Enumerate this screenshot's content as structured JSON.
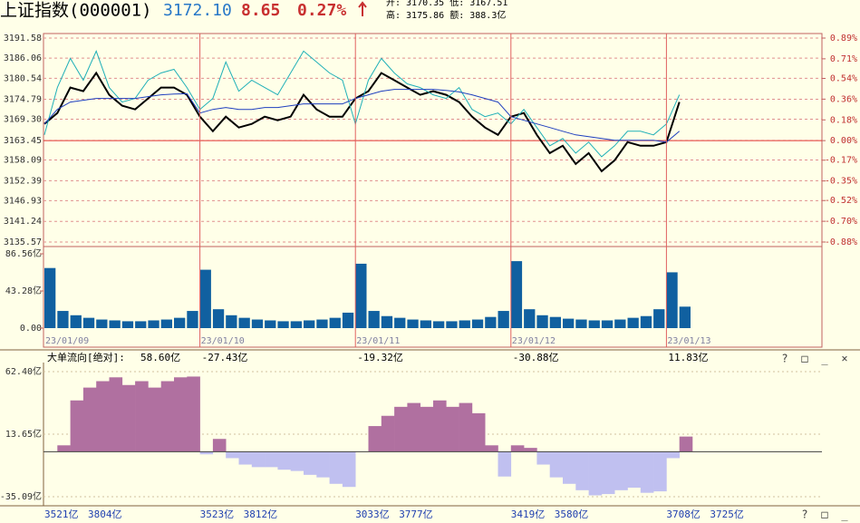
{
  "header": {
    "name": "上证指数(000001)",
    "price": "3172.10",
    "change": "8.65",
    "pct": "0.27%",
    "open_low": "开: 3170.35  低: 3167.51",
    "high_amount": "高: 3175.86  额: 388.3亿"
  },
  "chart_data": [
    {
      "type": "line",
      "series": [
        {
          "color": "#000000",
          "values": [
            3168,
            3171,
            3178,
            3177,
            3182,
            3176,
            3173,
            3172,
            3175,
            3178,
            3178,
            3176,
            3170,
            3166,
            3170,
            3167,
            3168,
            3170,
            3169,
            3170,
            3176,
            3172,
            3170,
            3170,
            3175,
            3177,
            3182,
            3180,
            3178,
            3176,
            3177,
            3176,
            3174,
            3170,
            3167,
            3165,
            3170,
            3171,
            3165,
            3160,
            3162,
            3157,
            3160,
            3155,
            3158,
            3163,
            3162,
            3162,
            3163,
            3174
          ]
        },
        {
          "color": "#20b0b8",
          "values": [
            3165,
            3178,
            3186,
            3180,
            3188,
            3178,
            3174,
            3175,
            3180,
            3182,
            3183,
            3178,
            3172,
            3175,
            3185,
            3177,
            3180,
            3178,
            3176,
            3182,
            3188,
            3185,
            3182,
            3180,
            3168,
            3180,
            3186,
            3182,
            3179,
            3178,
            3176,
            3175,
            3178,
            3172,
            3170,
            3171,
            3168,
            3172,
            3167,
            3162,
            3164,
            3160,
            3163,
            3159,
            3162,
            3166,
            3166,
            3165,
            3168,
            3176
          ]
        },
        {
          "color": "#1f3fbf",
          "values": [
            3168,
            3172,
            3174,
            3174.5,
            3175,
            3175,
            3175,
            3175,
            3175.5,
            3176,
            3176.2,
            3176.3,
            3171,
            3172,
            3172.5,
            3172,
            3172,
            3172.5,
            3172.5,
            3173,
            3173.5,
            3173.5,
            3173.5,
            3173.5,
            3175,
            3176,
            3177,
            3177.5,
            3177.5,
            3177.5,
            3177.5,
            3177.2,
            3176.8,
            3176,
            3175,
            3174,
            3170,
            3169,
            3168,
            3167,
            3166,
            3165,
            3164.5,
            3164,
            3163.5,
            3163.5,
            3163.5,
            3163.5,
            3163,
            3166
          ]
        }
      ],
      "ylim": [
        3135.57,
        3191.58
      ],
      "yticks": [
        3191.58,
        3186.06,
        3180.54,
        3174.79,
        {
          "value": 3169.3,
          "label": "3169.30"
        },
        3163.45,
        3158.09,
        3152.39,
        3146.93,
        3141.24,
        3135.57
      ],
      "y2lim": [
        -0.88,
        0.89
      ],
      "y2ticks": [
        {
          "value": 0.89,
          "label": "0.89%"
        },
        {
          "value": 0.71,
          "label": "0.71%"
        },
        {
          "value": 0.54,
          "label": "0.54%"
        },
        {
          "value": 0.36,
          "label": "0.36%"
        },
        {
          "value": 0.18,
          "label": "0.18%"
        },
        {
          "value": 0,
          "label": "0.00%"
        },
        {
          "value": -0.17,
          "label": "-0.17%"
        },
        {
          "value": -0.35,
          "label": "-0.35%"
        },
        {
          "value": -0.52,
          "label": "-0.52%"
        },
        {
          "value": -0.7,
          "label": "-0.70%"
        },
        {
          "value": -0.88,
          "label": "-0.88%"
        }
      ],
      "grid": true
    },
    {
      "type": "bar",
      "color": "#1060a0",
      "categories": [
        "23/01/09",
        null,
        null,
        null,
        null,
        null,
        null,
        null,
        null,
        null,
        null,
        null,
        "23/01/10",
        null,
        null,
        null,
        null,
        null,
        null,
        null,
        null,
        null,
        null,
        null,
        "23/01/11",
        null,
        null,
        null,
        null,
        null,
        null,
        null,
        null,
        null,
        null,
        null,
        "23/01/12",
        null,
        null,
        null,
        null,
        null,
        null,
        null,
        null,
        null,
        null,
        null,
        "23/01/13",
        null
      ],
      "values": [
        70,
        20,
        15,
        12,
        10,
        9,
        8,
        8,
        9,
        10,
        12,
        20,
        68,
        22,
        15,
        12,
        10,
        9,
        8,
        8,
        9,
        10,
        12,
        18,
        75,
        20,
        14,
        12,
        10,
        9,
        8,
        8,
        9,
        10,
        13,
        20,
        78,
        22,
        15,
        13,
        11,
        10,
        9,
        9,
        10,
        12,
        14,
        22,
        65,
        25
      ],
      "ylim": [
        0,
        86.56
      ],
      "yticks": [
        {
          "value": 86.56,
          "label": "86.56亿"
        },
        {
          "value": 43.28,
          "label": "43.28亿"
        },
        {
          "value": 0,
          "label": "0.00"
        }
      ]
    },
    {
      "type": "bar",
      "title": "大单流向[绝对]:",
      "positive_color": "#b070a0",
      "negative_color": "#c0c0f0",
      "values": [
        0,
        5,
        40,
        50,
        55,
        58,
        52,
        55,
        50,
        55,
        58,
        58.6,
        -2,
        10,
        -5,
        -10,
        -12,
        -12,
        -14,
        -15,
        -18,
        -20,
        -25,
        -27.43,
        0,
        20,
        28,
        35,
        38,
        35,
        40,
        35,
        38,
        30,
        5,
        -19.32,
        5,
        3,
        -10,
        -20,
        -25,
        -30,
        -34,
        -33,
        -30,
        -28,
        -32,
        -30.88,
        -5,
        11.83
      ],
      "day_labels": [
        "58.60亿",
        "-27.43亿",
        "-19.32亿",
        "-30.88亿",
        "11.83亿"
      ],
      "footer_labels": [
        "3521亿",
        "3804亿",
        "3523亿",
        "3812亿",
        "3033亿",
        "3777亿",
        "3419亿",
        "3580亿",
        "3708亿",
        "3725亿"
      ],
      "panel_icons": [
        "?",
        "□",
        "_",
        "×"
      ],
      "footer_icons": [
        "?",
        "□",
        "_"
      ],
      "ylim": [
        -40,
        69.5
      ],
      "yticks": [
        {
          "value": 62.4,
          "label": "62.40亿"
        },
        {
          "value": 13.65,
          "label": "13.65亿"
        },
        {
          "value": -35.09,
          "label": "-35.09亿"
        }
      ]
    }
  ]
}
